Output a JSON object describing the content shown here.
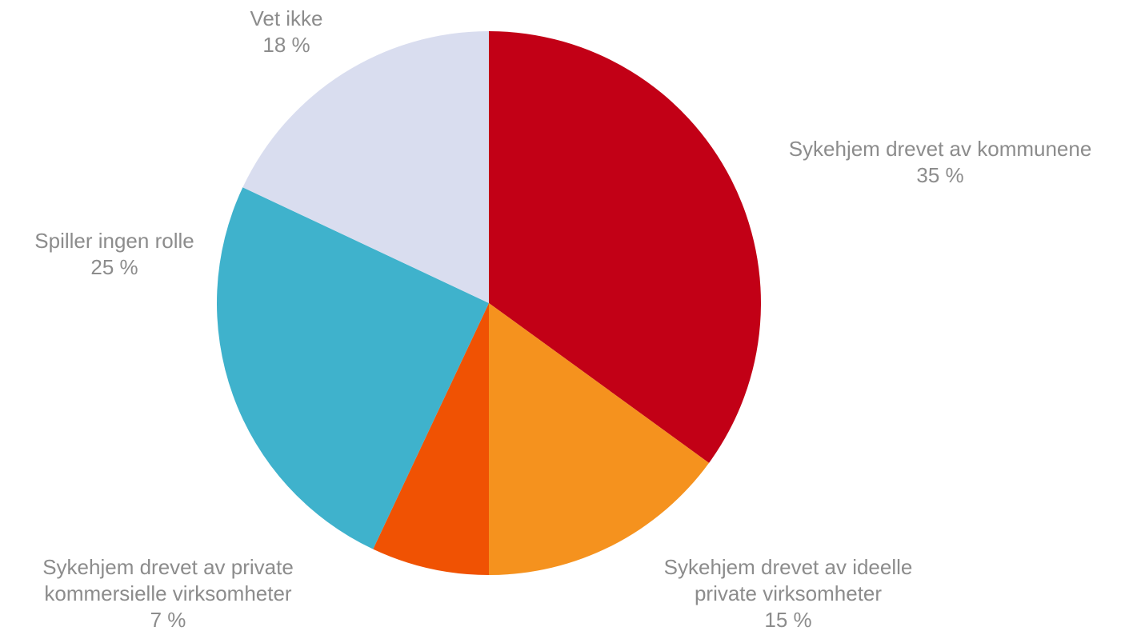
{
  "chart_data": {
    "type": "pie",
    "title": "",
    "start_angle_deg": 0,
    "direction": "clockwise",
    "slices": [
      {
        "label": [
          "Sykehjem drevet av kommunene"
        ],
        "value_label": "35 %",
        "value": 35,
        "color": "#c20016"
      },
      {
        "label": [
          "Sykehjem drevet av ideelle",
          "private virksomheter"
        ],
        "value_label": "15 %",
        "value": 15,
        "color": "#f5921e"
      },
      {
        "label": [
          "Sykehjem drevet av private",
          "kommersielle virksomheter"
        ],
        "value_label": "7 %",
        "value": 7,
        "color": "#f05203"
      },
      {
        "label": [
          "Spiller ingen rolle"
        ],
        "value_label": "25 %",
        "value": 25,
        "color": "#3fb2cc"
      },
      {
        "label": [
          "Vet ikke"
        ],
        "value_label": "18 %",
        "value": 18,
        "color": "#d9ddef",
        "label_color": "#e9e9ee"
      }
    ]
  }
}
